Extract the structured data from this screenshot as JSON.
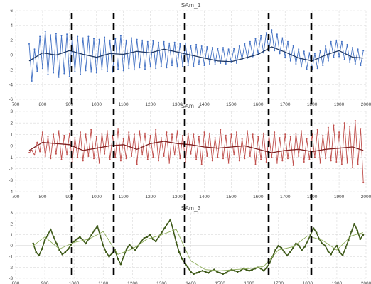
{
  "chart_data": [
    {
      "type": "line",
      "title": "SAm_1",
      "xlim": [
        700,
        2000
      ],
      "ylim": [
        -6,
        6
      ],
      "xticks": [
        700,
        800,
        900,
        1000,
        1100,
        1200,
        1300,
        1400,
        1500,
        1600,
        1700,
        1800,
        1900,
        2000
      ],
      "yticks": [
        -6,
        -4,
        -2,
        0,
        2,
        4,
        6
      ],
      "grid": true,
      "series": [
        {
          "color": "#4472c4",
          "x": [
            750,
            760,
            770,
            780,
            790,
            800,
            810,
            820,
            830,
            840,
            850,
            860,
            870,
            880,
            890,
            900,
            910,
            920,
            930,
            940,
            950,
            960,
            970,
            980,
            990,
            1000,
            1010,
            1020,
            1030,
            1040,
            1050,
            1060,
            1070,
            1080,
            1090,
            1100,
            1110,
            1120,
            1130,
            1140,
            1150,
            1160,
            1170,
            1180,
            1190,
            1200,
            1210,
            1220,
            1230,
            1240,
            1250,
            1260,
            1270,
            1280,
            1290,
            1300,
            1310,
            1320,
            1330,
            1340,
            1350,
            1360,
            1370,
            1380,
            1390,
            1400,
            1410,
            1420,
            1430,
            1440,
            1450,
            1460,
            1470,
            1480,
            1490,
            1500,
            1510,
            1520,
            1530,
            1540,
            1550,
            1560,
            1570,
            1580,
            1590,
            1600,
            1610,
            1620,
            1630,
            1640,
            1650,
            1660,
            1670,
            1680,
            1690,
            1700,
            1710,
            1720,
            1730,
            1740,
            1750,
            1760,
            1770,
            1780,
            1790,
            1800,
            1810,
            1820,
            1830,
            1840,
            1850,
            1860,
            1870,
            1880,
            1890,
            1900,
            1910,
            1920,
            1930,
            1940,
            1950,
            1960,
            1970,
            1980,
            1990
          ],
          "y": [
            1.5,
            -3.5,
            0.8,
            -2.2,
            2.5,
            -1.8,
            3.2,
            -2.6,
            2.7,
            -2.4,
            2.9,
            -3.0,
            2.6,
            -2.5,
            2.8,
            -2.9,
            2.4,
            -2.2,
            2.5,
            -2.6,
            2.3,
            -2.1,
            2.5,
            -2.3,
            2.2,
            -2.4,
            2.1,
            -2.0,
            2.4,
            -2.2,
            2.0,
            -2.3,
            2.2,
            -1.9,
            2.6,
            -2.1,
            2.0,
            -1.8,
            2.3,
            -2.0,
            2.1,
            -1.7,
            2.0,
            -1.9,
            1.8,
            -1.6,
            1.9,
            -1.8,
            1.7,
            -1.5,
            1.8,
            -1.7,
            1.6,
            -1.4,
            1.7,
            -1.6,
            1.5,
            -1.5,
            1.6,
            -1.4,
            1.3,
            -1.5,
            1.4,
            -1.3,
            1.2,
            -1.4,
            1.1,
            -1.2,
            1.0,
            -1.3,
            0.9,
            -1.1,
            1.0,
            -1.2,
            0.8,
            -1.0,
            0.9,
            -1.1,
            1.2,
            -0.6,
            1.5,
            -0.4,
            1.8,
            -0.2,
            2.2,
            0.1,
            2.6,
            0.3,
            3.0,
            0.5,
            3.4,
            0.6,
            2.8,
            0.2,
            2.3,
            -0.3,
            1.8,
            -0.8,
            1.3,
            -1.2,
            0.8,
            -1.6,
            0.5,
            -1.9,
            0.3,
            -2.0,
            0.2,
            -1.8,
            0.6,
            -1.4,
            1.2,
            -0.8,
            1.8,
            -0.3,
            2.0,
            -0.2,
            1.8,
            -0.6,
            1.4,
            -1.0,
            1.0,
            -1.2,
            0.8,
            -1.4,
            0.6
          ]
        },
        {
          "color": "#1f3864",
          "x": [
            750,
            800,
            850,
            900,
            950,
            1000,
            1050,
            1100,
            1150,
            1200,
            1250,
            1300,
            1350,
            1400,
            1450,
            1500,
            1550,
            1600,
            1650,
            1700,
            1750,
            1800,
            1850,
            1900,
            1950,
            1990
          ],
          "y": [
            -0.8,
            0.3,
            0.0,
            0.6,
            0.1,
            -0.3,
            0.2,
            0.1,
            0.5,
            0.3,
            0.8,
            0.4,
            0.0,
            -0.4,
            -0.8,
            -0.9,
            -0.4,
            0.1,
            1.1,
            0.4,
            -0.4,
            -0.8,
            0.0,
            0.6,
            -0.3,
            -0.4
          ]
        }
      ]
    },
    {
      "type": "line",
      "title": "SAm_2",
      "xlim": [
        700,
        2000
      ],
      "ylim": [
        -4,
        3
      ],
      "xticks": [
        700,
        800,
        900,
        1000,
        1100,
        1200,
        1300,
        1400,
        1500,
        1600,
        1700,
        1800,
        1900,
        2000
      ],
      "yticks": [
        -4,
        -3,
        -2,
        -1,
        0,
        1,
        2,
        3
      ],
      "grid": true,
      "series": [
        {
          "color": "#c0504d",
          "x": [
            750,
            760,
            770,
            780,
            790,
            800,
            810,
            820,
            830,
            840,
            850,
            860,
            870,
            880,
            890,
            900,
            910,
            920,
            930,
            940,
            950,
            960,
            970,
            980,
            990,
            1000,
            1010,
            1020,
            1030,
            1040,
            1050,
            1060,
            1070,
            1080,
            1090,
            1100,
            1110,
            1120,
            1130,
            1140,
            1150,
            1160,
            1170,
            1180,
            1190,
            1200,
            1210,
            1220,
            1230,
            1240,
            1250,
            1260,
            1270,
            1280,
            1290,
            1300,
            1310,
            1320,
            1330,
            1340,
            1350,
            1360,
            1370,
            1380,
            1390,
            1400,
            1410,
            1420,
            1430,
            1440,
            1450,
            1460,
            1470,
            1480,
            1490,
            1500,
            1510,
            1520,
            1530,
            1540,
            1550,
            1560,
            1570,
            1580,
            1590,
            1600,
            1610,
            1620,
            1630,
            1640,
            1650,
            1660,
            1670,
            1680,
            1690,
            1700,
            1710,
            1720,
            1730,
            1740,
            1750,
            1760,
            1770,
            1780,
            1790,
            1800,
            1810,
            1820,
            1830,
            1840,
            1850,
            1860,
            1870,
            1880,
            1890,
            1900,
            1910,
            1920,
            1930,
            1940,
            1950,
            1960,
            1970,
            1980,
            1990
          ],
          "y": [
            -0.6,
            -0.4,
            -0.8,
            0.3,
            -0.5,
            1.2,
            -0.9,
            0.8,
            -1.1,
            1.0,
            -0.7,
            1.3,
            -1.2,
            0.9,
            -0.8,
            1.1,
            -1.4,
            0.7,
            -1.0,
            1.2,
            -1.3,
            1.0,
            -0.9,
            1.4,
            -1.1,
            0.8,
            -1.5,
            1.1,
            -0.7,
            1.3,
            -1.2,
            0.9,
            -1.0,
            1.5,
            -1.3,
            0.6,
            -1.1,
            1.2,
            -0.9,
            1.0,
            -1.6,
            1.3,
            -0.8,
            1.1,
            -1.2,
            0.9,
            -1.0,
            1.4,
            -1.3,
            0.7,
            -0.9,
            1.2,
            -1.5,
            1.0,
            -0.8,
            1.3,
            -1.1,
            0.9,
            -1.4,
            1.1,
            -0.7,
            1.0,
            -1.2,
            0.8,
            -1.6,
            1.2,
            -0.9,
            1.1,
            -1.3,
            0.7,
            -1.0,
            1.4,
            -1.1,
            0.9,
            -1.5,
            1.0,
            -0.8,
            1.2,
            -1.3,
            0.6,
            -1.1,
            1.3,
            -0.9,
            1.0,
            -1.6,
            0.8,
            -1.2,
            1.1,
            -1.4,
            0.9,
            -1.0,
            1.2,
            -1.5,
            0.7,
            -1.3,
            1.0,
            -1.1,
            0.8,
            -1.7,
            1.1,
            -0.9,
            1.3,
            -1.4,
            0.6,
            -1.2,
            1.0,
            -1.0,
            1.4,
            -1.5,
            0.9,
            -1.1,
            1.6,
            -1.3,
            1.8,
            -1.4,
            1.2,
            -1.6,
            2.0,
            -1.5,
            1.7,
            -1.9,
            2.2,
            -1.6,
            1.5,
            -3.2
          ]
        },
        {
          "color": "#7f1f1f",
          "x": [
            750,
            800,
            850,
            900,
            950,
            1000,
            1050,
            1100,
            1150,
            1200,
            1250,
            1300,
            1350,
            1400,
            1450,
            1500,
            1550,
            1600,
            1650,
            1700,
            1750,
            1800,
            1850,
            1900,
            1950,
            1990
          ],
          "y": [
            -0.4,
            0.3,
            0.2,
            0.1,
            -0.4,
            -0.2,
            0.0,
            0.1,
            -0.3,
            0.2,
            0.4,
            0.2,
            0.1,
            -0.1,
            -0.2,
            -0.1,
            0.0,
            -0.3,
            -0.6,
            -0.4,
            -0.3,
            -0.5,
            -0.3,
            -0.2,
            -0.1,
            -0.4
          ]
        }
      ]
    },
    {
      "type": "line",
      "title": "SAm_3",
      "xlim": [
        800,
        2000
      ],
      "ylim": [
        -3,
        3
      ],
      "xticks": [
        800,
        900,
        1000,
        1100,
        1200,
        1300,
        1400,
        1500,
        1600,
        1700,
        1800,
        1900,
        2000
      ],
      "yticks": [
        -3,
        -2,
        -1,
        0,
        1,
        2,
        3
      ],
      "grid": true,
      "series": [
        {
          "color": "#3f5a1a",
          "x": [
            860,
            870,
            880,
            890,
            900,
            910,
            920,
            930,
            940,
            950,
            960,
            970,
            980,
            990,
            1000,
            1010,
            1020,
            1030,
            1040,
            1050,
            1060,
            1070,
            1080,
            1090,
            1100,
            1110,
            1120,
            1130,
            1140,
            1150,
            1160,
            1170,
            1180,
            1190,
            1200,
            1210,
            1220,
            1230,
            1240,
            1250,
            1260,
            1270,
            1280,
            1290,
            1300,
            1310,
            1320,
            1330,
            1340,
            1350,
            1360,
            1370,
            1380,
            1390,
            1400,
            1410,
            1420,
            1430,
            1440,
            1450,
            1460,
            1470,
            1480,
            1490,
            1500,
            1510,
            1520,
            1530,
            1540,
            1550,
            1560,
            1570,
            1580,
            1590,
            1600,
            1610,
            1620,
            1630,
            1640,
            1650,
            1660,
            1670,
            1680,
            1690,
            1700,
            1710,
            1720,
            1730,
            1740,
            1750,
            1760,
            1770,
            1780,
            1790,
            1800,
            1810,
            1820,
            1830,
            1840,
            1850,
            1860,
            1870,
            1880,
            1890,
            1900,
            1910,
            1920,
            1930,
            1940,
            1950,
            1960,
            1970,
            1980,
            1990
          ],
          "y": [
            0.2,
            -0.6,
            -0.9,
            -0.3,
            0.5,
            1.0,
            1.5,
            0.8,
            0.2,
            -0.4,
            -0.8,
            -0.6,
            -0.3,
            0.1,
            0.4,
            0.6,
            0.8,
            0.5,
            0.2,
            0.6,
            1.0,
            1.4,
            1.8,
            0.9,
            0.0,
            -0.6,
            -1.0,
            -0.7,
            -0.4,
            -1.2,
            -1.7,
            -1.0,
            -0.3,
            0.1,
            -0.2,
            -0.4,
            0.0,
            0.4,
            0.7,
            0.8,
            1.0,
            0.6,
            0.4,
            0.8,
            1.2,
            1.6,
            2.0,
            2.4,
            1.4,
            0.3,
            -0.6,
            -1.2,
            -1.6,
            -2.0,
            -2.4,
            -2.6,
            -2.5,
            -2.4,
            -2.3,
            -2.4,
            -2.5,
            -2.3,
            -2.2,
            -2.4,
            -2.5,
            -2.6,
            -2.5,
            -2.3,
            -2.2,
            -2.3,
            -2.4,
            -2.3,
            -2.1,
            -2.2,
            -2.3,
            -2.2,
            -2.1,
            -2.0,
            -2.1,
            -2.3,
            -2.0,
            -1.6,
            -1.0,
            -0.4,
            0.0,
            -0.2,
            -0.6,
            -0.9,
            -0.6,
            -0.2,
            0.2,
            0.0,
            -0.4,
            -0.1,
            0.4,
            1.0,
            1.6,
            1.2,
            0.6,
            0.2,
            0.0,
            -0.5,
            -0.8,
            -0.3,
            0.0,
            -0.6,
            -0.9,
            -0.2,
            0.5,
            1.3,
            2.0,
            1.4,
            0.6,
            1.0
          ]
        },
        {
          "color": "#8dac5a",
          "x": [
            860,
            900,
            950,
            1000,
            1050,
            1100,
            1150,
            1200,
            1250,
            1300,
            1350,
            1400,
            1450,
            1500,
            1550,
            1600,
            1650,
            1700,
            1750,
            1800,
            1850,
            1900,
            1950,
            1990
          ],
          "y": [
            0.0,
            0.8,
            -0.3,
            0.3,
            0.6,
            1.3,
            -0.8,
            -0.3,
            0.6,
            1.0,
            1.5,
            -1.4,
            -2.2,
            -2.3,
            -2.2,
            -2.1,
            -1.9,
            -0.4,
            -0.1,
            0.9,
            0.5,
            -0.4,
            0.9,
            1.2
          ]
        }
      ]
    }
  ]
}
